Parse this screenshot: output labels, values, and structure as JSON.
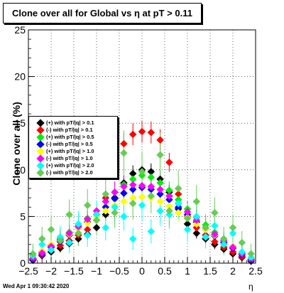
{
  "header": {
    "title": "Clone  over all for Global vs   η at pT > 0.11"
  },
  "footer": {
    "timestamp": "Wed Apr  1 09:30:42 2020"
  },
  "chart_data": {
    "type": "scatter",
    "title": "Clone  over all for Global vs   η at pT > 0.11",
    "xlabel": "η",
    "ylabel": "Clone  over all (%)",
    "xlim": [
      -2.5,
      2.5
    ],
    "ylim": [
      0,
      25
    ],
    "x_ticks": [
      -2.5,
      -2,
      -1.5,
      -1,
      -0.5,
      0,
      0.5,
      1,
      1.5,
      2,
      2.5
    ],
    "x_tick_labels": [
      "−2.5",
      "−2",
      "−1.5",
      "−1",
      "−0.5",
      "0",
      "0.5",
      "1",
      "1.5",
      "2",
      "2.5"
    ],
    "y_ticks": [
      0,
      5,
      10,
      15,
      20,
      25
    ],
    "y_tick_labels": [
      "0",
      "5",
      "10",
      "15",
      "20",
      "25"
    ],
    "grid": true,
    "legend_position": "left",
    "series": [
      {
        "name": "(+) with pT/|q| > 0.1",
        "color": "#000000",
        "points": [
          [
            -2.4,
            0.3
          ],
          [
            -2.2,
            0.8
          ],
          [
            -2.0,
            1.2
          ],
          [
            -1.8,
            1.6
          ],
          [
            -1.6,
            2.1
          ],
          [
            -1.4,
            2.6
          ],
          [
            -1.2,
            3.1
          ],
          [
            -1.0,
            3.8
          ],
          [
            -0.8,
            5.2
          ],
          [
            -0.6,
            7.0
          ],
          [
            -0.4,
            8.6
          ],
          [
            -0.2,
            9.6
          ],
          [
            0.0,
            10.0
          ],
          [
            0.2,
            9.8
          ],
          [
            0.4,
            9.0
          ],
          [
            0.6,
            7.6
          ],
          [
            0.8,
            5.8
          ],
          [
            1.0,
            4.2
          ],
          [
            1.2,
            3.2
          ],
          [
            1.4,
            2.6
          ],
          [
            1.6,
            2.0
          ],
          [
            1.8,
            1.5
          ],
          [
            2.0,
            1.0
          ],
          [
            2.2,
            0.6
          ],
          [
            2.4,
            0.2
          ]
        ]
      },
      {
        "name": "(-) with pT/|q| > 0.1",
        "color": "#ff0000",
        "points": [
          [
            -2.4,
            0.4
          ],
          [
            -2.2,
            0.9
          ],
          [
            -2.0,
            1.4
          ],
          [
            -1.8,
            1.9
          ],
          [
            -1.6,
            2.4
          ],
          [
            -1.4,
            3.0
          ],
          [
            -1.2,
            3.6
          ],
          [
            -1.0,
            4.6
          ],
          [
            -0.8,
            7.0
          ],
          [
            -0.6,
            10.2
          ],
          [
            -0.4,
            12.8
          ],
          [
            -0.2,
            13.8
          ],
          [
            0.0,
            14.1
          ],
          [
            0.2,
            14.0
          ],
          [
            0.4,
            13.2
          ],
          [
            0.6,
            10.8
          ],
          [
            0.8,
            7.4
          ],
          [
            1.0,
            5.0
          ],
          [
            1.2,
            3.8
          ],
          [
            1.4,
            3.0
          ],
          [
            1.6,
            2.3
          ],
          [
            1.8,
            1.7
          ],
          [
            2.0,
            1.2
          ],
          [
            2.2,
            0.7
          ],
          [
            2.4,
            0.3
          ]
        ]
      },
      {
        "name": "(+) with pT/|q| > 0.5",
        "color": "#00ee00",
        "points": [
          [
            -2.4,
            0.5
          ],
          [
            -2.2,
            1.2
          ],
          [
            -2.0,
            1.9
          ],
          [
            -1.8,
            2.6
          ],
          [
            -1.6,
            3.3
          ],
          [
            -1.4,
            4.0
          ],
          [
            -1.2,
            4.8
          ],
          [
            -1.0,
            5.6
          ],
          [
            -0.8,
            6.6
          ],
          [
            -0.6,
            7.6
          ],
          [
            -0.4,
            8.4
          ],
          [
            -0.2,
            9.0
          ],
          [
            0.0,
            9.4
          ],
          [
            0.2,
            9.2
          ],
          [
            0.4,
            8.6
          ],
          [
            0.6,
            7.8
          ],
          [
            0.8,
            6.8
          ],
          [
            1.0,
            5.8
          ],
          [
            1.2,
            4.9
          ],
          [
            1.4,
            4.1
          ],
          [
            1.6,
            3.3
          ],
          [
            1.8,
            2.6
          ],
          [
            2.0,
            1.8
          ],
          [
            2.2,
            1.1
          ],
          [
            2.4,
            0.4
          ]
        ]
      },
      {
        "name": "(-) with pT/|q| > 0.5",
        "color": "#0000ff",
        "points": [
          [
            -2.4,
            0.4
          ],
          [
            -2.2,
            1.0
          ],
          [
            -2.0,
            1.7
          ],
          [
            -1.8,
            2.3
          ],
          [
            -1.6,
            3.0
          ],
          [
            -1.4,
            3.7
          ],
          [
            -1.2,
            4.4
          ],
          [
            -1.0,
            5.2
          ],
          [
            -0.8,
            6.0
          ],
          [
            -0.6,
            6.9
          ],
          [
            -0.4,
            7.5
          ],
          [
            -0.2,
            7.9
          ],
          [
            0.0,
            8.1
          ],
          [
            0.2,
            7.9
          ],
          [
            0.4,
            7.4
          ],
          [
            0.6,
            6.8
          ],
          [
            0.8,
            6.0
          ],
          [
            1.0,
            5.2
          ],
          [
            1.2,
            4.4
          ],
          [
            1.4,
            3.6
          ],
          [
            1.6,
            2.9
          ],
          [
            1.8,
            2.2
          ],
          [
            2.0,
            1.6
          ],
          [
            2.2,
            0.9
          ],
          [
            2.4,
            0.3
          ]
        ]
      },
      {
        "name": "(+) with pT/|q| > 1.0",
        "color": "#ffff00",
        "points": [
          [
            -2.4,
            0.6
          ],
          [
            -2.2,
            1.3
          ],
          [
            -2.0,
            2.0
          ],
          [
            -1.8,
            2.5
          ],
          [
            -1.6,
            3.1
          ],
          [
            -1.4,
            3.7
          ],
          [
            -1.2,
            4.3
          ],
          [
            -1.0,
            5.0
          ],
          [
            -0.8,
            5.6
          ],
          [
            -0.6,
            6.2
          ],
          [
            -0.4,
            6.6
          ],
          [
            -0.2,
            7.0
          ],
          [
            0.0,
            7.1
          ],
          [
            0.2,
            7.0
          ],
          [
            0.4,
            6.6
          ],
          [
            0.6,
            6.1
          ],
          [
            0.8,
            5.4
          ],
          [
            1.0,
            4.9
          ],
          [
            1.2,
            4.2
          ],
          [
            1.4,
            3.6
          ],
          [
            1.6,
            3.0
          ],
          [
            1.8,
            2.4
          ],
          [
            2.0,
            1.8
          ],
          [
            2.2,
            1.1
          ],
          [
            2.4,
            0.5
          ]
        ]
      },
      {
        "name": "(-) with pT/|q| > 1.0",
        "color": "#ff00ff",
        "points": [
          [
            -2.4,
            0.5
          ],
          [
            -2.2,
            1.1
          ],
          [
            -2.0,
            1.8
          ],
          [
            -1.8,
            2.5
          ],
          [
            -1.6,
            3.2
          ],
          [
            -1.4,
            3.9
          ],
          [
            -1.2,
            4.7
          ],
          [
            -1.0,
            5.6
          ],
          [
            -0.8,
            6.6
          ],
          [
            -0.6,
            7.6
          ],
          [
            -0.4,
            8.2
          ],
          [
            -0.2,
            8.4
          ],
          [
            0.0,
            8.3
          ],
          [
            0.2,
            8.2
          ],
          [
            0.4,
            7.9
          ],
          [
            0.6,
            7.2
          ],
          [
            0.8,
            6.4
          ],
          [
            1.0,
            5.5
          ],
          [
            1.2,
            4.6
          ],
          [
            1.4,
            3.8
          ],
          [
            1.6,
            3.1
          ],
          [
            1.8,
            2.4
          ],
          [
            2.0,
            1.7
          ],
          [
            2.2,
            1.0
          ],
          [
            2.4,
            0.4
          ]
        ]
      },
      {
        "name": "(+) with pT/|q| > 2.0",
        "color": "#00ffff",
        "points": [
          [
            -2.4,
            0.8
          ],
          [
            -2.2,
            2.0
          ],
          [
            -2.0,
            1.4
          ],
          [
            -1.8,
            2.8
          ],
          [
            -1.6,
            2.2
          ],
          [
            -1.4,
            4.2
          ],
          [
            -1.2,
            3.0
          ],
          [
            -1.0,
            5.2
          ],
          [
            -0.8,
            3.8
          ],
          [
            -0.6,
            6.0
          ],
          [
            -0.4,
            5.0
          ],
          [
            -0.2,
            2.6
          ],
          [
            0.0,
            6.2
          ],
          [
            0.2,
            3.4
          ],
          [
            0.4,
            5.6
          ],
          [
            0.6,
            5.2
          ],
          [
            0.8,
            6.4
          ],
          [
            1.0,
            3.6
          ],
          [
            1.2,
            5.0
          ],
          [
            1.4,
            2.8
          ],
          [
            1.6,
            4.0
          ],
          [
            1.8,
            2.0
          ],
          [
            2.0,
            3.2
          ],
          [
            2.2,
            1.2
          ],
          [
            2.4,
            0.6
          ]
        ]
      },
      {
        "name": "(-) with pT/|q| > 2.0",
        "color": "#66cc55",
        "points": [
          [
            -2.4,
            1.0
          ],
          [
            -2.2,
            2.6
          ],
          [
            -2.0,
            3.6
          ],
          [
            -1.8,
            2.4
          ],
          [
            -1.6,
            5.2
          ],
          [
            -1.4,
            3.2
          ],
          [
            -1.2,
            6.2
          ],
          [
            -1.0,
            4.6
          ],
          [
            -0.8,
            7.4
          ],
          [
            -0.6,
            5.4
          ],
          [
            -0.4,
            11.8
          ],
          [
            -0.2,
            6.4
          ],
          [
            0.0,
            9.8
          ],
          [
            0.2,
            7.2
          ],
          [
            0.4,
            11.6
          ],
          [
            0.6,
            5.6
          ],
          [
            0.8,
            8.0
          ],
          [
            1.0,
            4.8
          ],
          [
            1.2,
            6.6
          ],
          [
            1.4,
            3.8
          ],
          [
            1.6,
            5.4
          ],
          [
            1.8,
            2.6
          ],
          [
            2.0,
            3.8
          ],
          [
            2.2,
            2.2
          ],
          [
            2.4,
            1.0
          ]
        ]
      }
    ]
  }
}
